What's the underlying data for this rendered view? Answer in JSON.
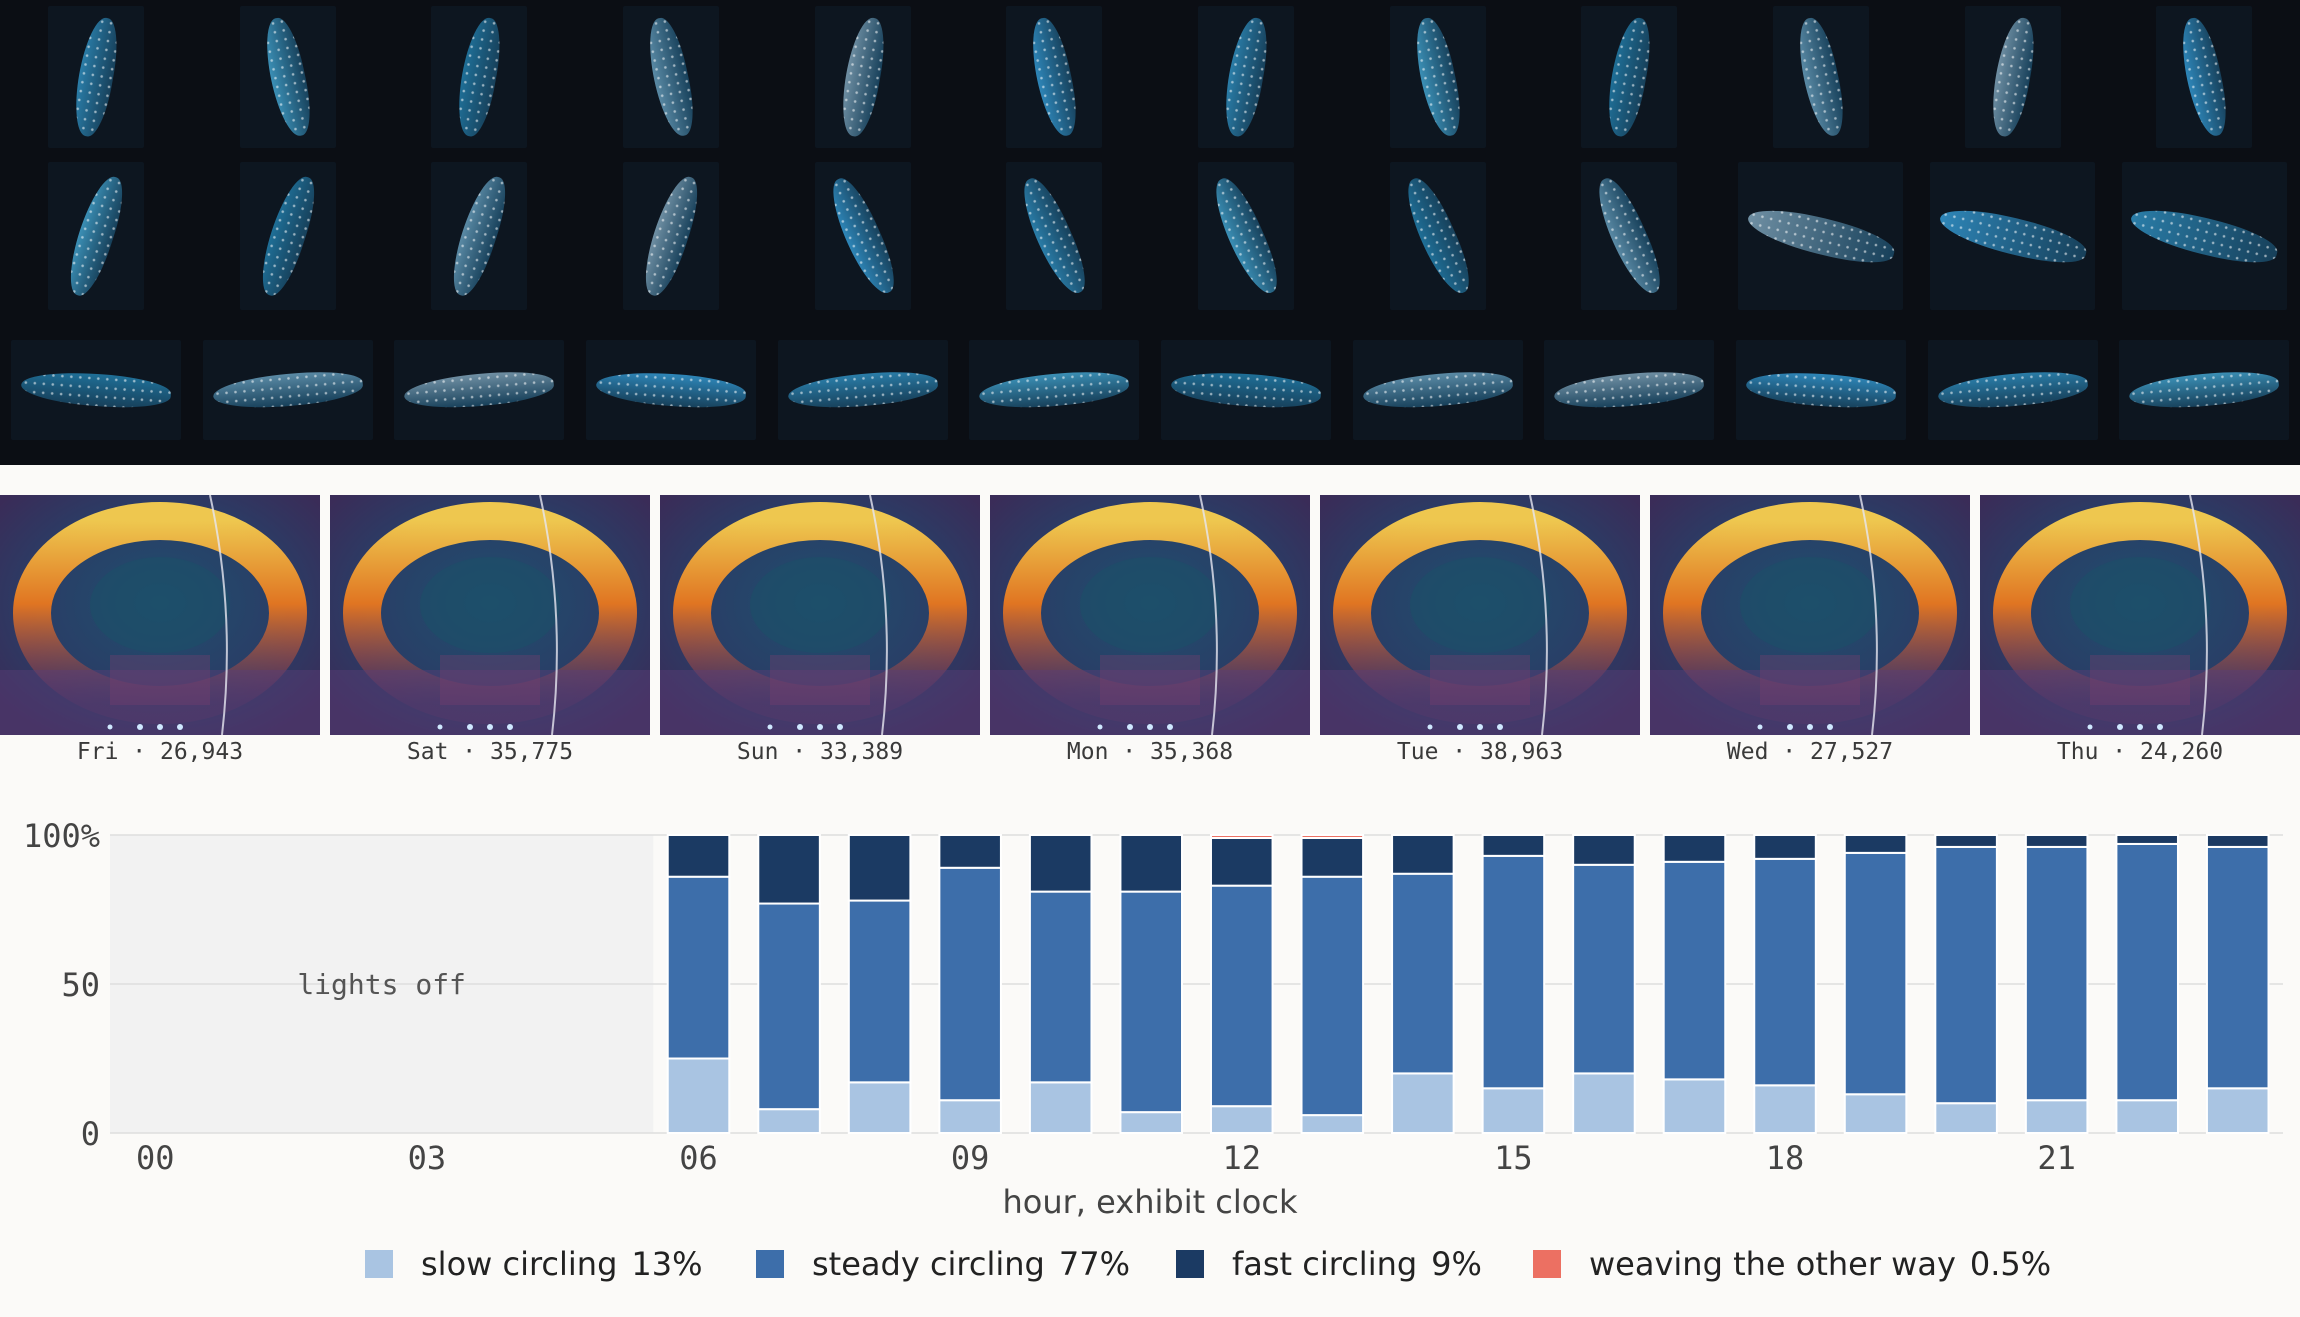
{
  "gallery": {
    "rows": [
      {
        "count": 12,
        "orientation": "vertical"
      },
      {
        "count": 12,
        "orientation": "diagonal"
      },
      {
        "count": 12,
        "orientation": "horizontal"
      }
    ]
  },
  "heatmaps": [
    {
      "day": "Fri",
      "count": "26,943",
      "label": "Fri · 26,943"
    },
    {
      "day": "Sat",
      "count": "35,775",
      "label": "Sat · 35,775"
    },
    {
      "day": "Sun",
      "count": "33,389",
      "label": "Sun · 33,389"
    },
    {
      "day": "Mon",
      "count": "35,368",
      "label": "Mon · 35,368"
    },
    {
      "day": "Tue",
      "count": "38,963",
      "label": "Tue · 38,963"
    },
    {
      "day": "Wed",
      "count": "27,527",
      "label": "Wed · 27,527"
    },
    {
      "day": "Thu",
      "count": "24,260",
      "label": "Thu · 24,260"
    }
  ],
  "chart_data": {
    "type": "bar",
    "stacked": true,
    "x_ticks": [
      "00",
      "03",
      "06",
      "09",
      "12",
      "15",
      "18",
      "21"
    ],
    "y_ticks": [
      "0",
      "50",
      "100%"
    ],
    "ylim": [
      0,
      100
    ],
    "xlabel": "hour, exhibit clock",
    "shaded_region": {
      "from_hour": 0,
      "to_hour": 6,
      "label": "lights off"
    },
    "hours": [
      6,
      7,
      8,
      9,
      10,
      11,
      12,
      13,
      14,
      15,
      16,
      17,
      18,
      19,
      20,
      21,
      22,
      23
    ],
    "series": [
      {
        "name": "slow circling",
        "share": "13%",
        "color": "#a9c4e2",
        "values": [
          25,
          8,
          17,
          11,
          17,
          7,
          9,
          6,
          20,
          15,
          20,
          18,
          16,
          13,
          10,
          11,
          11,
          15
        ]
      },
      {
        "name": "steady circling",
        "share": "77%",
        "color": "#3d6eaa",
        "values": [
          61,
          69,
          61,
          78,
          64,
          74,
          74,
          80,
          67,
          78,
          70,
          73,
          76,
          81,
          86,
          85,
          86,
          81
        ]
      },
      {
        "name": "fast circling",
        "share": "9%",
        "color": "#1b3a63",
        "values": [
          14,
          23,
          22,
          11,
          19,
          19,
          16,
          13,
          13,
          7,
          10,
          9,
          8,
          6,
          4,
          4,
          3,
          4
        ]
      },
      {
        "name": "weaving the other way",
        "share": "0.5%",
        "color": "#ec7062",
        "values": [
          0,
          0,
          0,
          0,
          0,
          0,
          1,
          1,
          0,
          0,
          0,
          0,
          0,
          0,
          0,
          0,
          0,
          0
        ]
      }
    ]
  }
}
